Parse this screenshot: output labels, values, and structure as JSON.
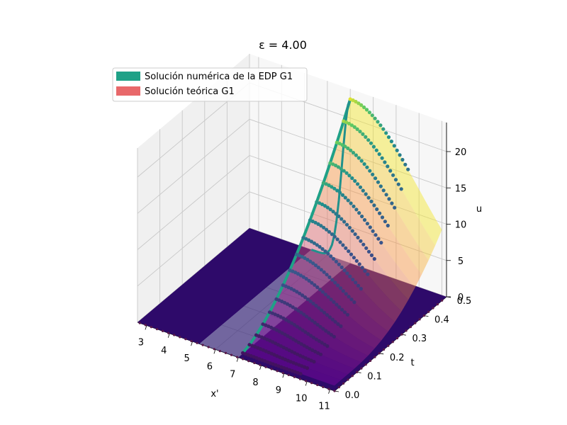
{
  "chart_data": {
    "type": "surface3d",
    "title": "ε = 4.00",
    "xlabel": "x'",
    "ylabel": "t",
    "zlabel": "u",
    "xlim": [
      2.6,
      11.2
    ],
    "ylim": [
      0.0,
      0.5
    ],
    "zlim": [
      0,
      24
    ],
    "xticks": [
      "3",
      "4",
      "5",
      "6",
      "7",
      "8",
      "9",
      "10",
      "11"
    ],
    "yticks": [
      "0.0",
      "0.1",
      "0.2",
      "0.3",
      "0.4",
      "0.5"
    ],
    "zticks": [
      "0",
      "5",
      "10",
      "15",
      "20"
    ],
    "legend": {
      "placement": "top-left",
      "entries": [
        {
          "label": "Solución numérica de la EDP G1",
          "color": "#1fa187"
        },
        {
          "label": "Solución teórica G1",
          "color": "#e8686a"
        }
      ]
    },
    "series": [
      {
        "name": "Solución numérica de la EDP G1",
        "style": "points",
        "colormap": "viridis"
      },
      {
        "name": "Solución teórica G1",
        "style": "surface",
        "colormap": "plasma"
      }
    ],
    "peak": {
      "x": 7.0,
      "t": 0.5,
      "u": 22.6
    },
    "time_samples": [
      0.02,
      0.05,
      0.08,
      0.11,
      0.14,
      0.17,
      0.2,
      0.23,
      0.26,
      0.29,
      0.32,
      0.35,
      0.38,
      0.41,
      0.44,
      0.47,
      0.5
    ],
    "grid": true
  }
}
